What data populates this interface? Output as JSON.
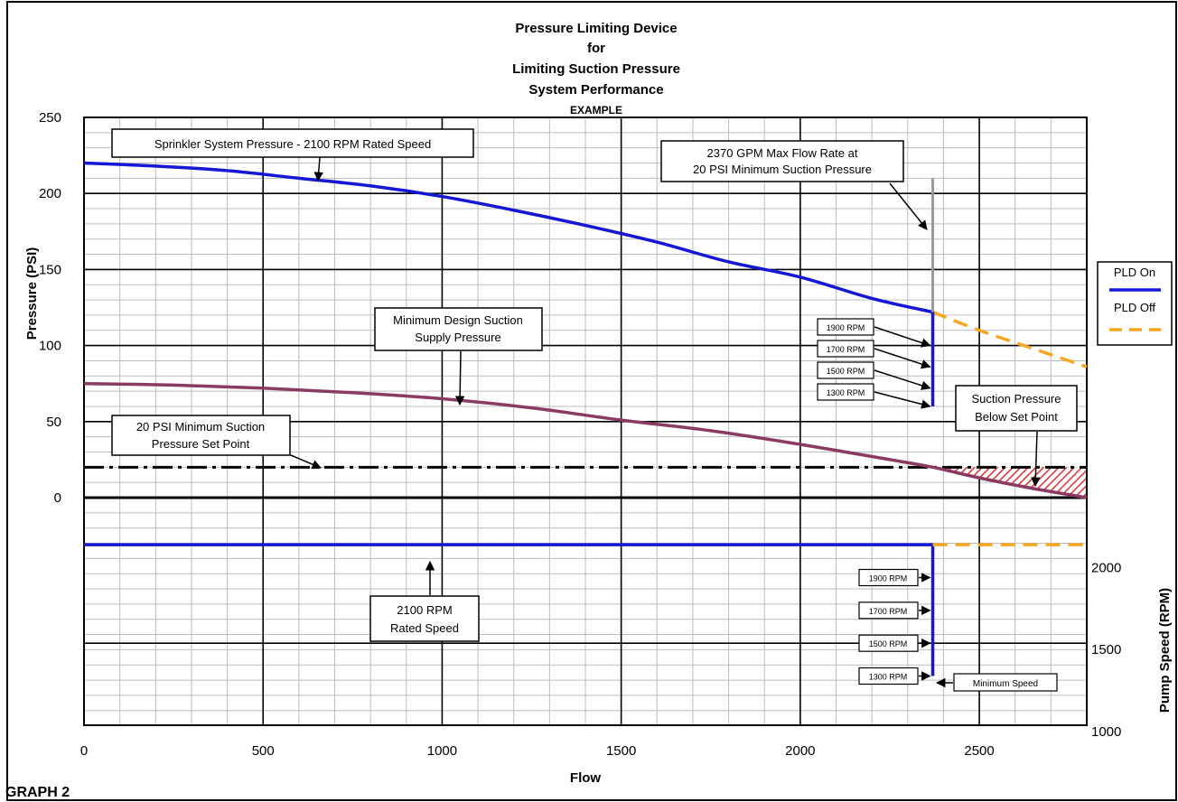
{
  "title_lines": [
    "Pressure Limiting Device",
    "for",
    "Limiting Suction Pressure",
    "System Performance"
  ],
  "subtitle": "EXAMPLE",
  "figure_label": "GRAPH 2",
  "legend": [
    {
      "label": "PLD On",
      "color": "#1616d6",
      "style": "solid"
    },
    {
      "label": "PLD Off",
      "color": "#f5a623",
      "style": "dashed"
    }
  ],
  "annotations": {
    "sprinkler": "Sprinkler System Pressure - 2100 RPM Rated Speed",
    "maxflow": [
      "2370 GPM Max Flow Rate at",
      "20 PSI Minimum Suction Pressure"
    ],
    "min_design": [
      "Minimum Design Suction",
      "Supply Pressure"
    ],
    "setpoint": [
      "20 PSI Minimum Suction",
      "Pressure Set Point"
    ],
    "below": [
      "Suction Pressure",
      "Below Set Point"
    ],
    "rated_speed": [
      "2100 RPM",
      "Rated Speed"
    ],
    "min_speed": "Minimum Speed"
  },
  "chart_data": {
    "type": "line",
    "xlabel": "Flow",
    "x_ticks": [
      0,
      500,
      1000,
      1500,
      2000,
      2500
    ],
    "xlim": [
      0,
      2800
    ],
    "pressure_axis": {
      "label": "Pressure (PSI)",
      "ticks": [
        0,
        50,
        100,
        150,
        200,
        250
      ],
      "range": [
        0,
        250
      ]
    },
    "speed_axis": {
      "label": "Pump Speed (RPM)",
      "ticks": [
        1000,
        1500,
        2000
      ],
      "range": [
        1000,
        2200
      ]
    },
    "grid": true,
    "series": [
      {
        "curve": "system_pressure_on",
        "x": [
          0,
          200,
          400,
          600,
          800,
          1000,
          1200,
          1400,
          1600,
          1800,
          2000,
          2200,
          2370
        ],
        "y": [
          220,
          218,
          215,
          210,
          205,
          198,
          189,
          179,
          168,
          155,
          145,
          131,
          122
        ]
      },
      {
        "curve": "system_pressure_off",
        "x": [
          2370,
          2500,
          2650,
          2800
        ],
        "y": [
          122,
          110,
          98,
          86
        ]
      },
      {
        "curve": "suction_supply",
        "x": [
          0,
          250,
          500,
          750,
          1000,
          1250,
          1500,
          1750,
          2000,
          2250,
          2370,
          2500,
          2650,
          2800
        ],
        "y": [
          75,
          74,
          72,
          69,
          65,
          59,
          51,
          44,
          35,
          25,
          20,
          13,
          6,
          0
        ]
      },
      {
        "curve": "set_point",
        "x": [
          0,
          2800
        ],
        "y": [
          20,
          20
        ]
      },
      {
        "curve": "pressure_rpm_drop",
        "x": [
          2370,
          2370
        ],
        "y": [
          122,
          60
        ]
      },
      {
        "curve": "speed_on",
        "x": [
          0,
          2370,
          2370
        ],
        "y": [
          2100,
          2100,
          1300
        ]
      },
      {
        "curve": "speed_off",
        "x": [
          2370,
          2800
        ],
        "y": [
          2100,
          2100
        ]
      }
    ],
    "max_flow_marker": {
      "x": 2370,
      "y_top": 210
    },
    "pressure_rpm_labels": [
      {
        "label": "1900 RPM",
        "y": 100
      },
      {
        "label": "1700 RPM",
        "y": 86
      },
      {
        "label": "1500 RPM",
        "y": 72
      },
      {
        "label": "1300 RPM",
        "y": 60
      }
    ],
    "speed_rpm_labels": [
      {
        "label": "1900 RPM",
        "y": 1900
      },
      {
        "label": "1700 RPM",
        "y": 1700
      },
      {
        "label": "1500 RPM",
        "y": 1500
      },
      {
        "label": "1300 RPM",
        "y": 1300
      }
    ]
  }
}
